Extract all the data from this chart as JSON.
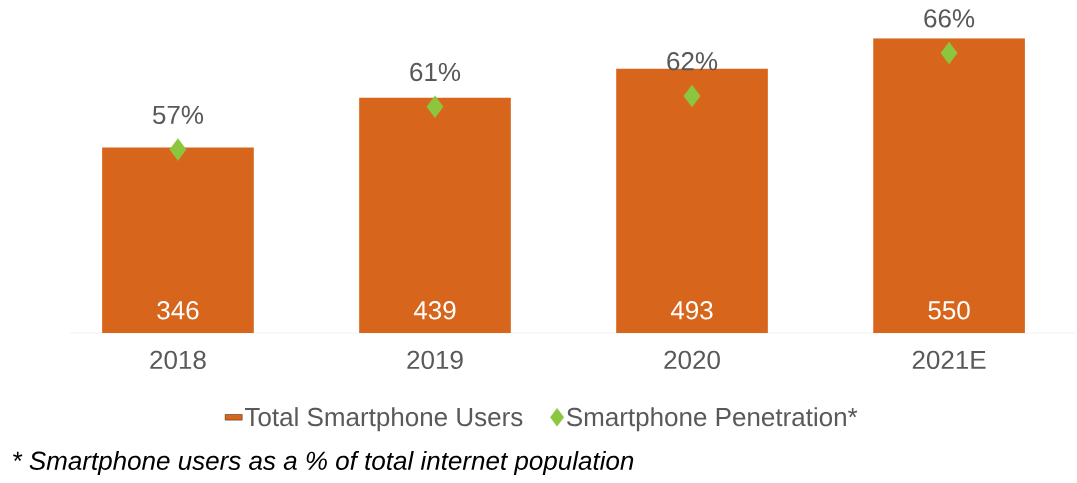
{
  "chart_data": {
    "type": "bar",
    "categories": [
      "2018",
      "2019",
      "2020",
      "2021E"
    ],
    "series": [
      {
        "name": "Total Smartphone Users",
        "color": "#d8651c",
        "values": [
          346,
          439,
          493,
          550
        ]
      },
      {
        "name": "Smartphone Penetration*",
        "type": "scatter",
        "axis": "y2",
        "color": "#8cc63f",
        "marker": "diamond",
        "values": [
          57,
          61,
          62,
          66
        ],
        "value_labels": [
          "57%",
          "61%",
          "62%",
          "66%"
        ]
      }
    ],
    "data_labels": true,
    "legend": "bottom",
    "annotations": [
      "* Smartphone users as a % of total internet population"
    ]
  }
}
